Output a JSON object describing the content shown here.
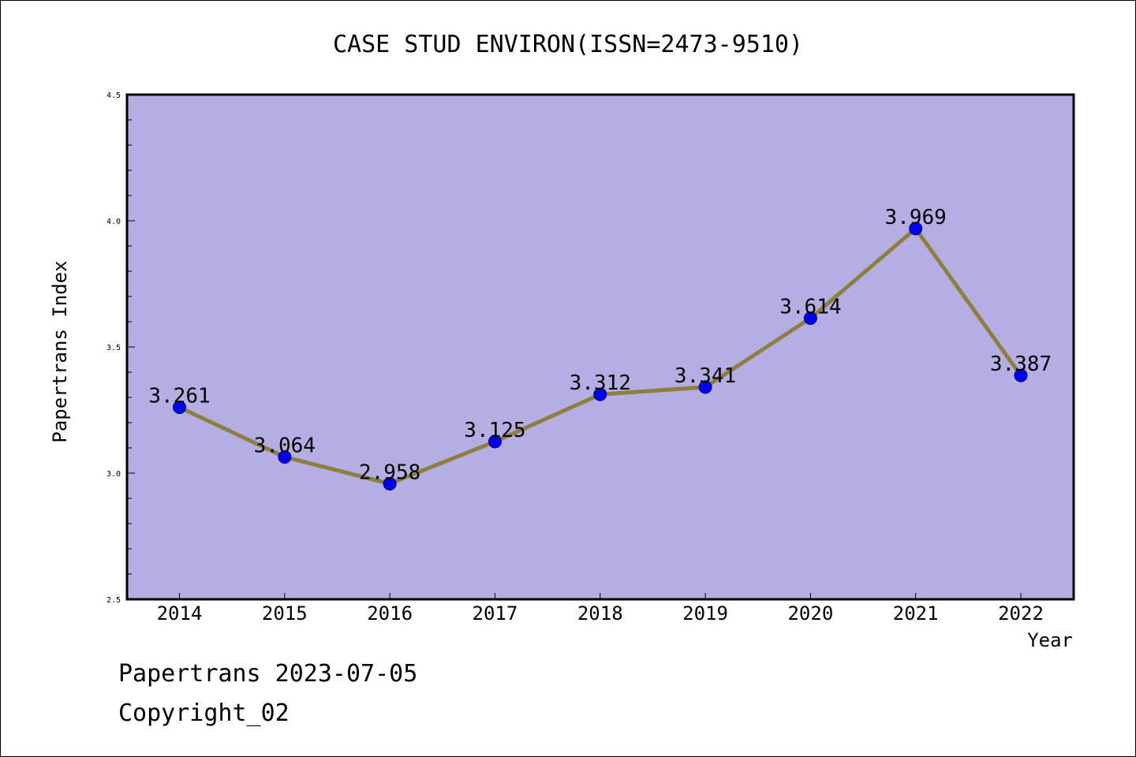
{
  "chart_data": {
    "type": "line",
    "title": "CASE STUD ENVIRON(ISSN=2473-9510)",
    "xlabel": "Year",
    "ylabel": "Papertrans Index",
    "categories": [
      "2014",
      "2015",
      "2016",
      "2017",
      "2018",
      "2019",
      "2020",
      "2021",
      "2022"
    ],
    "series": [
      {
        "values": [
          3.261,
          3.064,
          2.958,
          3.125,
          3.312,
          3.341,
          3.614,
          3.969,
          3.387
        ],
        "labels": [
          "3.261",
          "3.064",
          "2.958",
          "3.125",
          "3.312",
          "3.341",
          "3.614",
          "3.969",
          "3.387"
        ]
      }
    ],
    "ylim": [
      2.5,
      4.5
    ],
    "yticks": [
      "2.5",
      "3.0",
      "3.5",
      "4.0",
      "4.5"
    ],
    "grid": false,
    "colors": {
      "plot_background": "#b5aee2",
      "line": "#8f7f3f",
      "marker": "#0000ee",
      "marker_edge": "#00007a"
    }
  },
  "footer": {
    "date_line": "Papertrans 2023-07-05",
    "copyright": "Copyright_02"
  }
}
